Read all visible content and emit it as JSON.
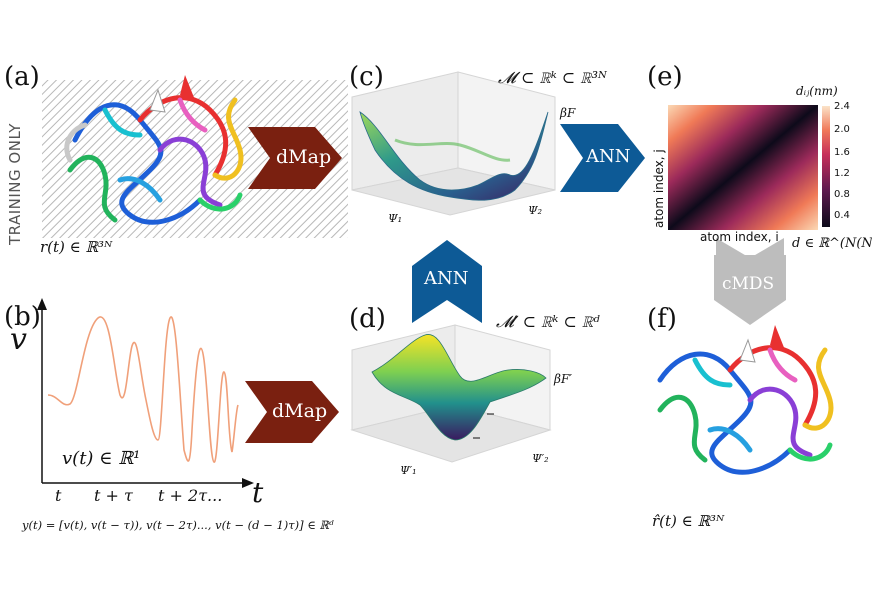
{
  "panels": {
    "a": {
      "letter": "(a)",
      "side_label": "TRAINING ONLY",
      "caption": "r(t) ∈ ℝ³ᴺ",
      "arrow_label": "dMap"
    },
    "b": {
      "letter": "(b)",
      "axis_y": "v",
      "axis_x": "t",
      "caption": "v(t) ∈ ℝ¹",
      "ticks": [
        "t",
        "t + τ",
        "t + 2τ..."
      ],
      "embedding": "y(t) = [v(t), v(t − τ)), v(t − 2τ)..., v(t − (d − 1)τ)] ∈ ℝᵈ",
      "arrow_label": "dMap"
    },
    "c": {
      "letter": "(c)",
      "manifold": "𝓜 ⊂ ℝᵏ ⊂ ℝ³ᴺ",
      "zlabel": "βF",
      "x1": "Ψ₁",
      "x2": "Ψ₂",
      "arrow_label": "ANN"
    },
    "d": {
      "letter": "(d)",
      "manifold": "𝓜′ ⊂ ℝᵏ ⊂ ℝᵈ",
      "zlabel": "βF′",
      "x1": "Ψ′₁",
      "x2": "Ψ′₂",
      "arrow_label": "ANN"
    },
    "e": {
      "letter": "(e)",
      "colorbar_title": "dᵢⱼ(nm)",
      "colorbar_ticks": [
        "2.4",
        "2.0",
        "1.6",
        "1.2",
        "0.8",
        "0.4"
      ],
      "ylabel": "atom index, j",
      "xlabel": "atom index, i",
      "caption": "d ∈ ℝ^(N(N−1)/2)",
      "arrow_label": "cMDS"
    },
    "f": {
      "letter": "(f)",
      "caption": "r̂(t) ∈ ℝ³ᴺ"
    }
  },
  "colors": {
    "dmap_arrow": "#7a2010",
    "ann_arrow": "#0d5a96",
    "cmds_arrow": "#bdbdbd",
    "signal": "#f0a07a"
  }
}
